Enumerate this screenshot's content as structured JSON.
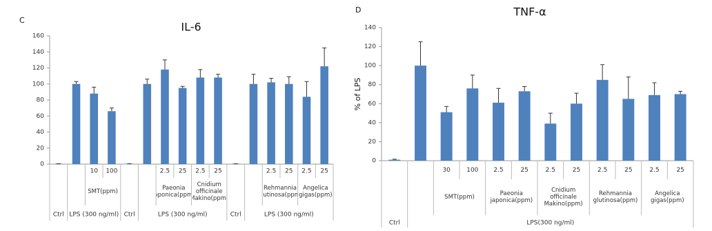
{
  "chart_data": [
    {
      "type": "bar",
      "panel": "C",
      "title": "IL-6",
      "color": "#4f81bd",
      "ylim": [
        0,
        160
      ],
      "yticks": [
        0,
        20,
        40,
        60,
        80,
        100,
        120,
        140,
        160
      ],
      "grid": false,
      "categories": [
        null,
        null,
        "10",
        "100",
        null,
        null,
        "2.5",
        "25",
        "2.5",
        "25",
        null,
        null,
        "2.5",
        "25",
        "2.5",
        "25"
      ],
      "values": [
        0.5,
        100,
        88,
        66,
        0.5,
        100,
        118,
        95,
        108,
        108,
        0.5,
        100,
        102,
        100,
        84,
        122
      ],
      "errors": [
        0,
        3,
        8,
        4,
        0,
        6,
        12,
        2,
        10,
        4,
        0,
        12,
        5,
        9,
        19,
        23
      ],
      "x_groups": [
        {
          "label": "SMT(ppm)",
          "first": 2,
          "last": 3
        },
        {
          "label": "Paeonia japonica(ppm)",
          "first": 6,
          "last": 7
        },
        {
          "label": "Cnidium officinale Makino(ppm)",
          "first": 8,
          "last": 9
        },
        {
          "label": "Rehmannia glutinosa(ppm)",
          "first": 12,
          "last": 13
        },
        {
          "label": "Angelica gigas(ppm)",
          "first": 14,
          "last": 15
        }
      ],
      "x_top_groups": [
        {
          "label": "Ctrl",
          "first": 0,
          "last": 0
        },
        {
          "label": "LPS (300 ng/ml)",
          "first": 1,
          "last": 3
        },
        {
          "label": "Ctrl",
          "first": 4,
          "last": 4
        },
        {
          "label": "LPS (300 ng/ml)",
          "first": 5,
          "last": 9
        },
        {
          "label": "Ctrl",
          "first": 10,
          "last": 10
        },
        {
          "label": "LPS (300 ng/ml)",
          "first": 11,
          "last": 15
        }
      ]
    },
    {
      "type": "bar",
      "panel": "D",
      "title": "TNF-α",
      "ylabel": "% of LPS",
      "color": "#4f81bd",
      "ylim": [
        0,
        140
      ],
      "yticks": [
        0,
        20,
        40,
        60,
        80,
        100,
        120,
        140
      ],
      "grid": false,
      "categories": [
        null,
        null,
        "30",
        "100",
        "2.5",
        "25",
        "2.5",
        "25",
        "2.5",
        "25",
        "2.5",
        "25"
      ],
      "values": [
        1,
        100,
        51,
        76,
        61,
        73,
        39,
        60,
        85,
        65,
        69,
        70
      ],
      "errors": [
        0.5,
        25,
        6,
        14,
        15,
        5,
        11,
        11,
        16,
        23,
        13,
        3
      ],
      "x_groups": [
        {
          "label": "SMT(ppm)",
          "first": 2,
          "last": 3
        },
        {
          "label": "Paeonia japonica(ppm)",
          "first": 4,
          "last": 5
        },
        {
          "label": "Cnidium officinale Makino(ppm)",
          "first": 6,
          "last": 7
        },
        {
          "label": "Rehmannia glutinosa(ppm)",
          "first": 8,
          "last": 9
        },
        {
          "label": "Angelica gigas(ppm)",
          "first": 10,
          "last": 11
        }
      ],
      "x_top_groups": [
        {
          "label": "Ctrl",
          "first": 0,
          "last": 0
        },
        {
          "label": "LPS(300 ng/ml)",
          "first": 1,
          "last": 11
        }
      ]
    }
  ]
}
